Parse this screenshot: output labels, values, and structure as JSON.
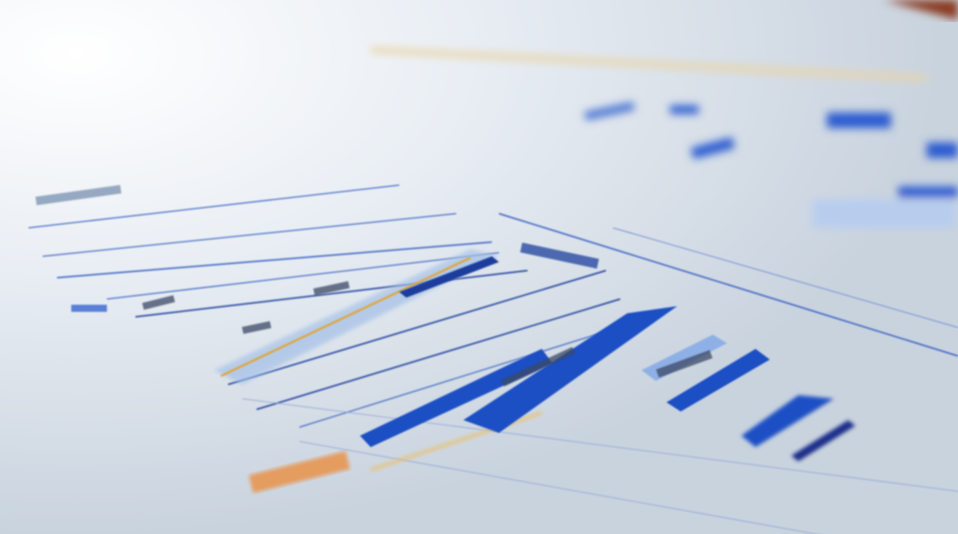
{
  "scene": {
    "subject": "printed-charts-on-desk",
    "colors": {
      "paper_light": "#f4f7fa",
      "paper_shadow": "#cdd6e0",
      "bar_blue": "#1f4fc4",
      "bar_light_blue": "#9fbde6",
      "grid_line": "#3a62c2",
      "accent_gold": "#e0a63a",
      "accent_orange": "#e8924a",
      "corner_red": "#8a3a22"
    }
  }
}
